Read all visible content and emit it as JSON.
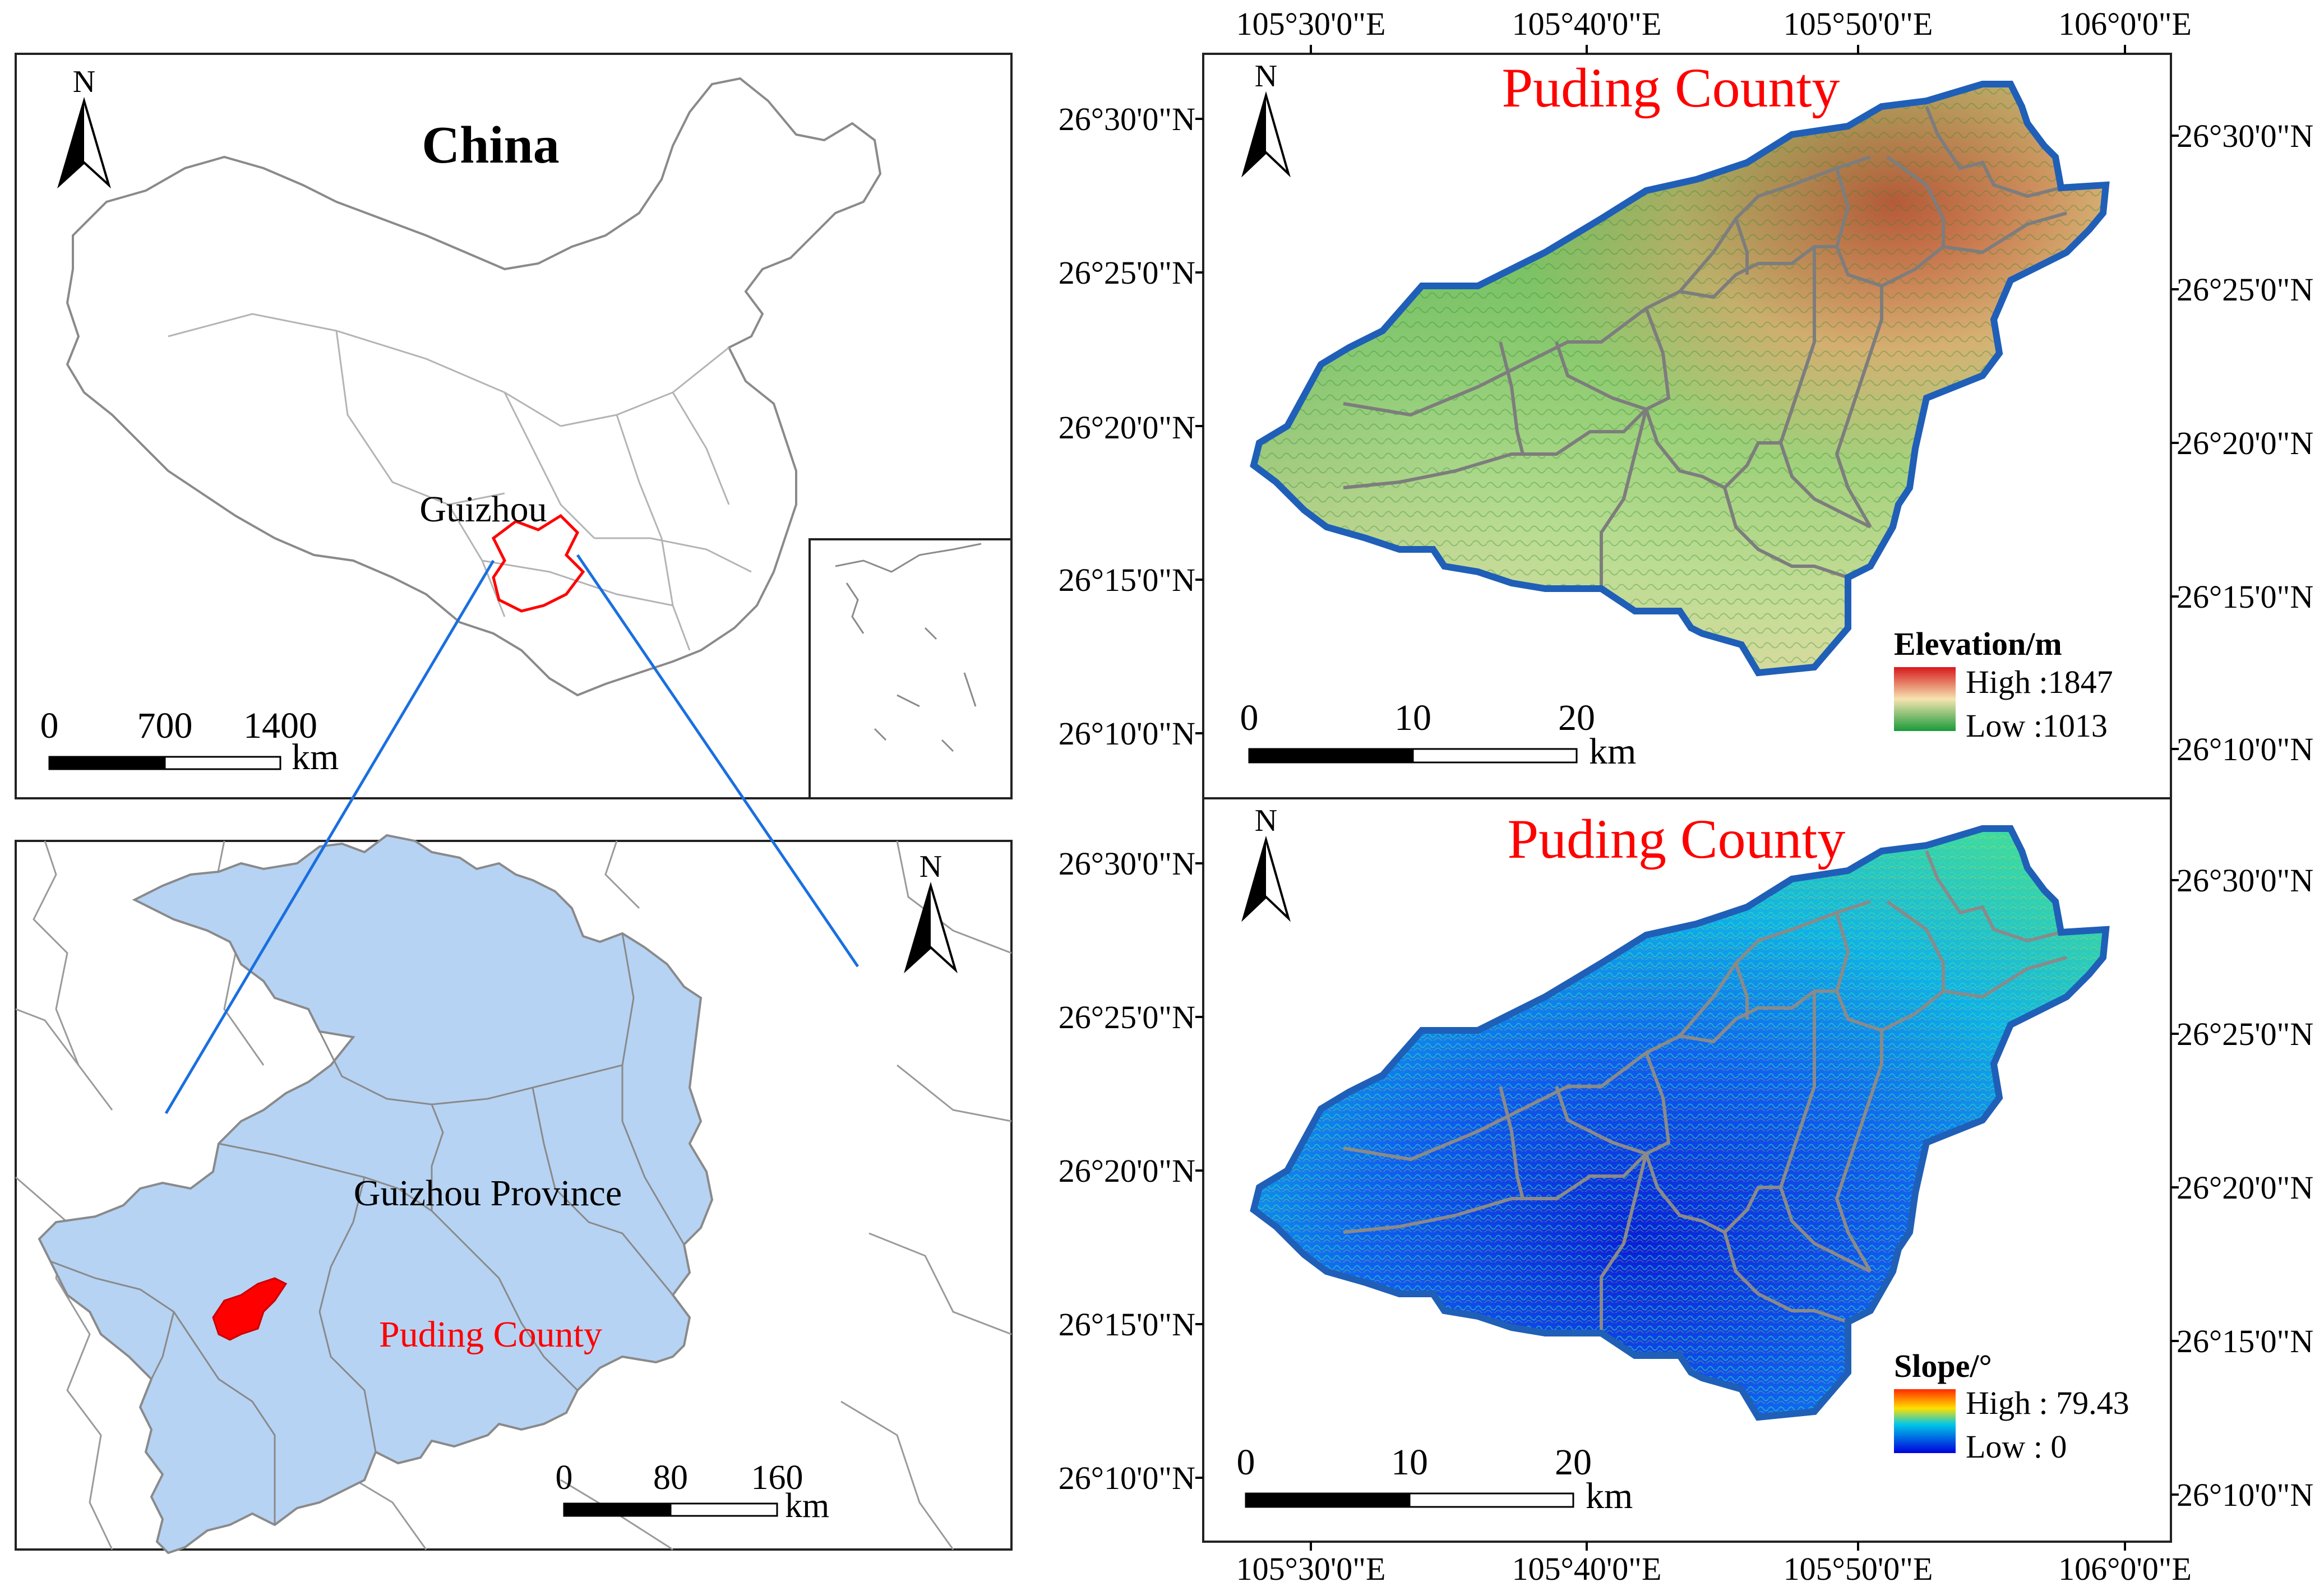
{
  "china": {
    "title": "China",
    "province_label": "Guizhou",
    "scale": {
      "ticks": [
        "0",
        "700",
        "1400"
      ],
      "unit": "km"
    }
  },
  "guizhou": {
    "province_label": "Guizhou Province",
    "county_label": "Puding County",
    "scale": {
      "ticks": [
        "0",
        "80",
        "160"
      ],
      "unit": "km"
    }
  },
  "north_label": "N",
  "elevation": {
    "title": "Puding County",
    "legend_title": "Elevation/m",
    "high_label": "High :1847",
    "low_label": "Low :1013",
    "scale": {
      "ticks": [
        "0",
        "10",
        "20"
      ],
      "unit": "km"
    }
  },
  "slope": {
    "title": "Puding County",
    "legend_title": "Slope/°",
    "high_label": "High : 79.43",
    "low_label": "Low : 0",
    "scale": {
      "ticks": [
        "0",
        "10",
        "20"
      ],
      "unit": "km"
    }
  },
  "graticule": {
    "lon_labels": [
      "105°30'0\"E",
      "105°40'0\"E",
      "105°50'0\"E",
      "106°0'0\"E"
    ],
    "lat_labels": [
      "26°30'0\"N",
      "26°25'0\"N",
      "26°20'0\"N",
      "26°15'0\"N",
      "26°10'0\"N"
    ]
  },
  "colors": {
    "county_red": "#ff0000",
    "province_fill": "#b6d3f4",
    "leader_line": "#1a6fe0",
    "county_outline": "#1f5fb8",
    "elev_high": "#d7191c",
    "elev_mid": "#f6e4b0",
    "elev_low": "#1a9a3a",
    "slope_high": "#ff2a00",
    "slope_mid": "#00c8e8",
    "slope_low": "#0000dd"
  }
}
